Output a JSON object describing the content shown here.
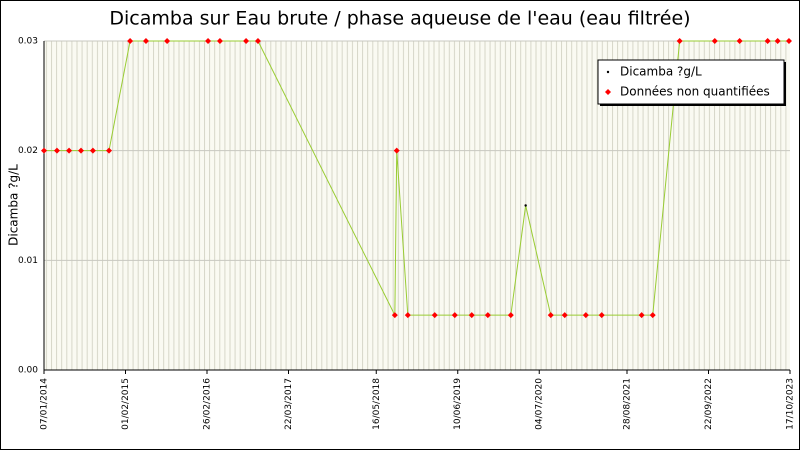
{
  "chart_data": {
    "type": "line",
    "title": "Dicamba sur Eau brute / phase aqueuse de l'eau (eau filtrée)",
    "y_label": "Dicamba ?g/L",
    "x": [
      "2014-01-07",
      "2014-03-10",
      "2014-05-07",
      "2014-07-03",
      "2014-08-29",
      "2014-11-14",
      "2015-02-23",
      "2015-05-10",
      "2015-08-19",
      "2016-03-02",
      "2016-04-28",
      "2016-08-31",
      "2016-10-27",
      "2018-08-13",
      "2018-08-22",
      "2018-10-14",
      "2019-02-20",
      "2019-05-27",
      "2019-08-16",
      "2019-11-01",
      "2020-02-19",
      "2020-04-30",
      "2020-08-28",
      "2020-11-03",
      "2021-02-12",
      "2021-04-29",
      "2021-11-06",
      "2021-12-29",
      "2022-05-07",
      "2022-10-22",
      "2023-02-18",
      "2023-07-02",
      "2023-08-19",
      "2023-10-12"
    ],
    "series": [
      {
        "name": "Dicamba ?g/L",
        "color": "#000000",
        "line_color": "#99cc33",
        "marker": "dot",
        "values": [
          0.02,
          0.02,
          0.02,
          0.02,
          0.02,
          0.02,
          0.03,
          0.03,
          0.03,
          0.03,
          0.03,
          0.03,
          0.03,
          0.005,
          0.02,
          0.005,
          0.005,
          0.005,
          0.005,
          0.005,
          0.005,
          0.015,
          0.005,
          0.005,
          0.005,
          0.005,
          0.005,
          0.005,
          0.03,
          0.03,
          0.03,
          0.03,
          0.03,
          0.03
        ]
      },
      {
        "name": "Données non quantifiées",
        "color": "#ff0000",
        "marker": "diamond",
        "values": [
          0.02,
          0.02,
          0.02,
          0.02,
          0.02,
          0.02,
          0.03,
          0.03,
          0.03,
          0.03,
          0.03,
          0.03,
          0.03,
          0.005,
          0.02,
          0.005,
          0.005,
          0.005,
          0.005,
          0.005,
          0.005,
          null,
          0.005,
          0.005,
          0.005,
          0.005,
          0.005,
          0.005,
          0.03,
          0.03,
          0.03,
          0.03,
          0.03,
          0.03
        ]
      }
    ],
    "xlim": [
      "2014-01-07",
      "2023-10-17"
    ],
    "xticks": [
      {
        "value": "2014-01-07",
        "label": "07/01/2014"
      },
      {
        "value": "2015-02-01",
        "label": "01/02/2015"
      },
      {
        "value": "2016-02-26",
        "label": "26/02/2016"
      },
      {
        "value": "2017-03-22",
        "label": "22/03/2017"
      },
      {
        "value": "2018-05-16",
        "label": "16/05/2018"
      },
      {
        "value": "2019-06-10",
        "label": "10/06/2019"
      },
      {
        "value": "2020-07-04",
        "label": "04/07/2020"
      },
      {
        "value": "2021-08-28",
        "label": "28/08/2021"
      },
      {
        "value": "2022-09-22",
        "label": "22/09/2022"
      },
      {
        "value": "2023-10-17",
        "label": "17/10/2023"
      }
    ],
    "ylim": [
      0,
      0.03
    ],
    "yticks": [
      {
        "value": 0,
        "label": "0.00"
      },
      {
        "value": 0.01,
        "label": "0.01"
      },
      {
        "value": 0.02,
        "label": "0.02"
      },
      {
        "value": 0.03,
        "label": "0.03"
      }
    ],
    "grid": true,
    "legend": "top-right"
  }
}
